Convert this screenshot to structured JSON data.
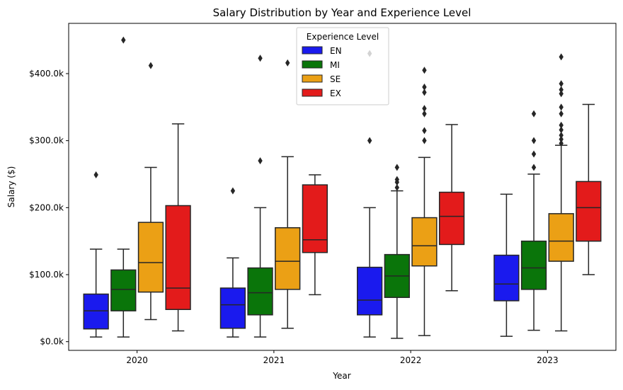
{
  "chart_data": {
    "type": "boxplot",
    "title": "Salary Distribution by Year and Experience Level",
    "xlabel": "Year",
    "ylabel": "Salary ($)",
    "categories": [
      "2020",
      "2021",
      "2022",
      "2023"
    ],
    "ylim": [
      -13000,
      475000
    ],
    "yticks": [
      0,
      100000,
      200000,
      300000,
      400000
    ],
    "ytick_labels": [
      "$0.0k",
      "$100.0k",
      "$200.0k",
      "$300.0k",
      "$400.0k"
    ],
    "grid": false,
    "legend": {
      "title": "Experience Level",
      "position": "top-center"
    },
    "series": [
      {
        "name": "EN",
        "color": "#1a1aee",
        "boxes": [
          {
            "whislo": 7000,
            "q1": 19000,
            "med": 46000,
            "q3": 71000,
            "whishi": 138000,
            "fliers": [
              249000
            ]
          },
          {
            "whislo": 7000,
            "q1": 20000,
            "med": 55000,
            "q3": 80000,
            "whishi": 125000,
            "fliers": [
              225000
            ]
          },
          {
            "whislo": 7000,
            "q1": 40000,
            "med": 62000,
            "q3": 111000,
            "whishi": 200000,
            "fliers": [
              300000,
              430000
            ]
          },
          {
            "whislo": 8000,
            "q1": 61000,
            "med": 86000,
            "q3": 129000,
            "whishi": 220000,
            "fliers": []
          }
        ]
      },
      {
        "name": "MI",
        "color": "#0a750a",
        "boxes": [
          {
            "whislo": 7000,
            "q1": 46000,
            "med": 78000,
            "q3": 107000,
            "whishi": 138000,
            "fliers": [
              450000
            ]
          },
          {
            "whislo": 7000,
            "q1": 40000,
            "med": 73000,
            "q3": 110000,
            "whishi": 200000,
            "fliers": [
              270000,
              423000
            ]
          },
          {
            "whislo": 5000,
            "q1": 66000,
            "med": 98000,
            "q3": 130000,
            "whishi": 225000,
            "fliers": [
              230000,
              238000,
              242000,
              260000
            ]
          },
          {
            "whislo": 17000,
            "q1": 78000,
            "med": 110000,
            "q3": 150000,
            "whishi": 250000,
            "fliers": [
              260000,
              280000,
              300000,
              340000
            ]
          }
        ]
      },
      {
        "name": "SE",
        "color": "#eba015",
        "boxes": [
          {
            "whislo": 33000,
            "q1": 74000,
            "med": 118000,
            "q3": 178000,
            "whishi": 260000,
            "fliers": [
              412000
            ]
          },
          {
            "whislo": 20000,
            "q1": 78000,
            "med": 120000,
            "q3": 170000,
            "whishi": 276000,
            "fliers": [
              416000
            ]
          },
          {
            "whislo": 9000,
            "q1": 113000,
            "med": 143000,
            "q3": 185000,
            "whishi": 275000,
            "fliers": [
              300000,
              315000,
              340000,
              348000,
              372000,
              380000,
              405000
            ]
          },
          {
            "whislo": 16000,
            "q1": 120000,
            "med": 150000,
            "q3": 191000,
            "whishi": 293000,
            "fliers": [
              296000,
              302000,
              308000,
              316000,
              323000,
              340000,
              350000,
              370000,
              376000,
              385000,
              425000
            ]
          }
        ]
      },
      {
        "name": "EX",
        "color": "#e31b1b",
        "boxes": [
          {
            "whislo": 16000,
            "q1": 48000,
            "med": 80000,
            "q3": 203000,
            "whishi": 325000,
            "fliers": []
          },
          {
            "whislo": 70000,
            "q1": 133000,
            "med": 152000,
            "q3": 234000,
            "whishi": 249000,
            "fliers": []
          },
          {
            "whislo": 76000,
            "q1": 145000,
            "med": 187000,
            "q3": 223000,
            "whishi": 324000,
            "fliers": []
          },
          {
            "whislo": 100000,
            "q1": 150000,
            "med": 200000,
            "q3": 239000,
            "whishi": 354000,
            "fliers": []
          }
        ]
      }
    ]
  }
}
